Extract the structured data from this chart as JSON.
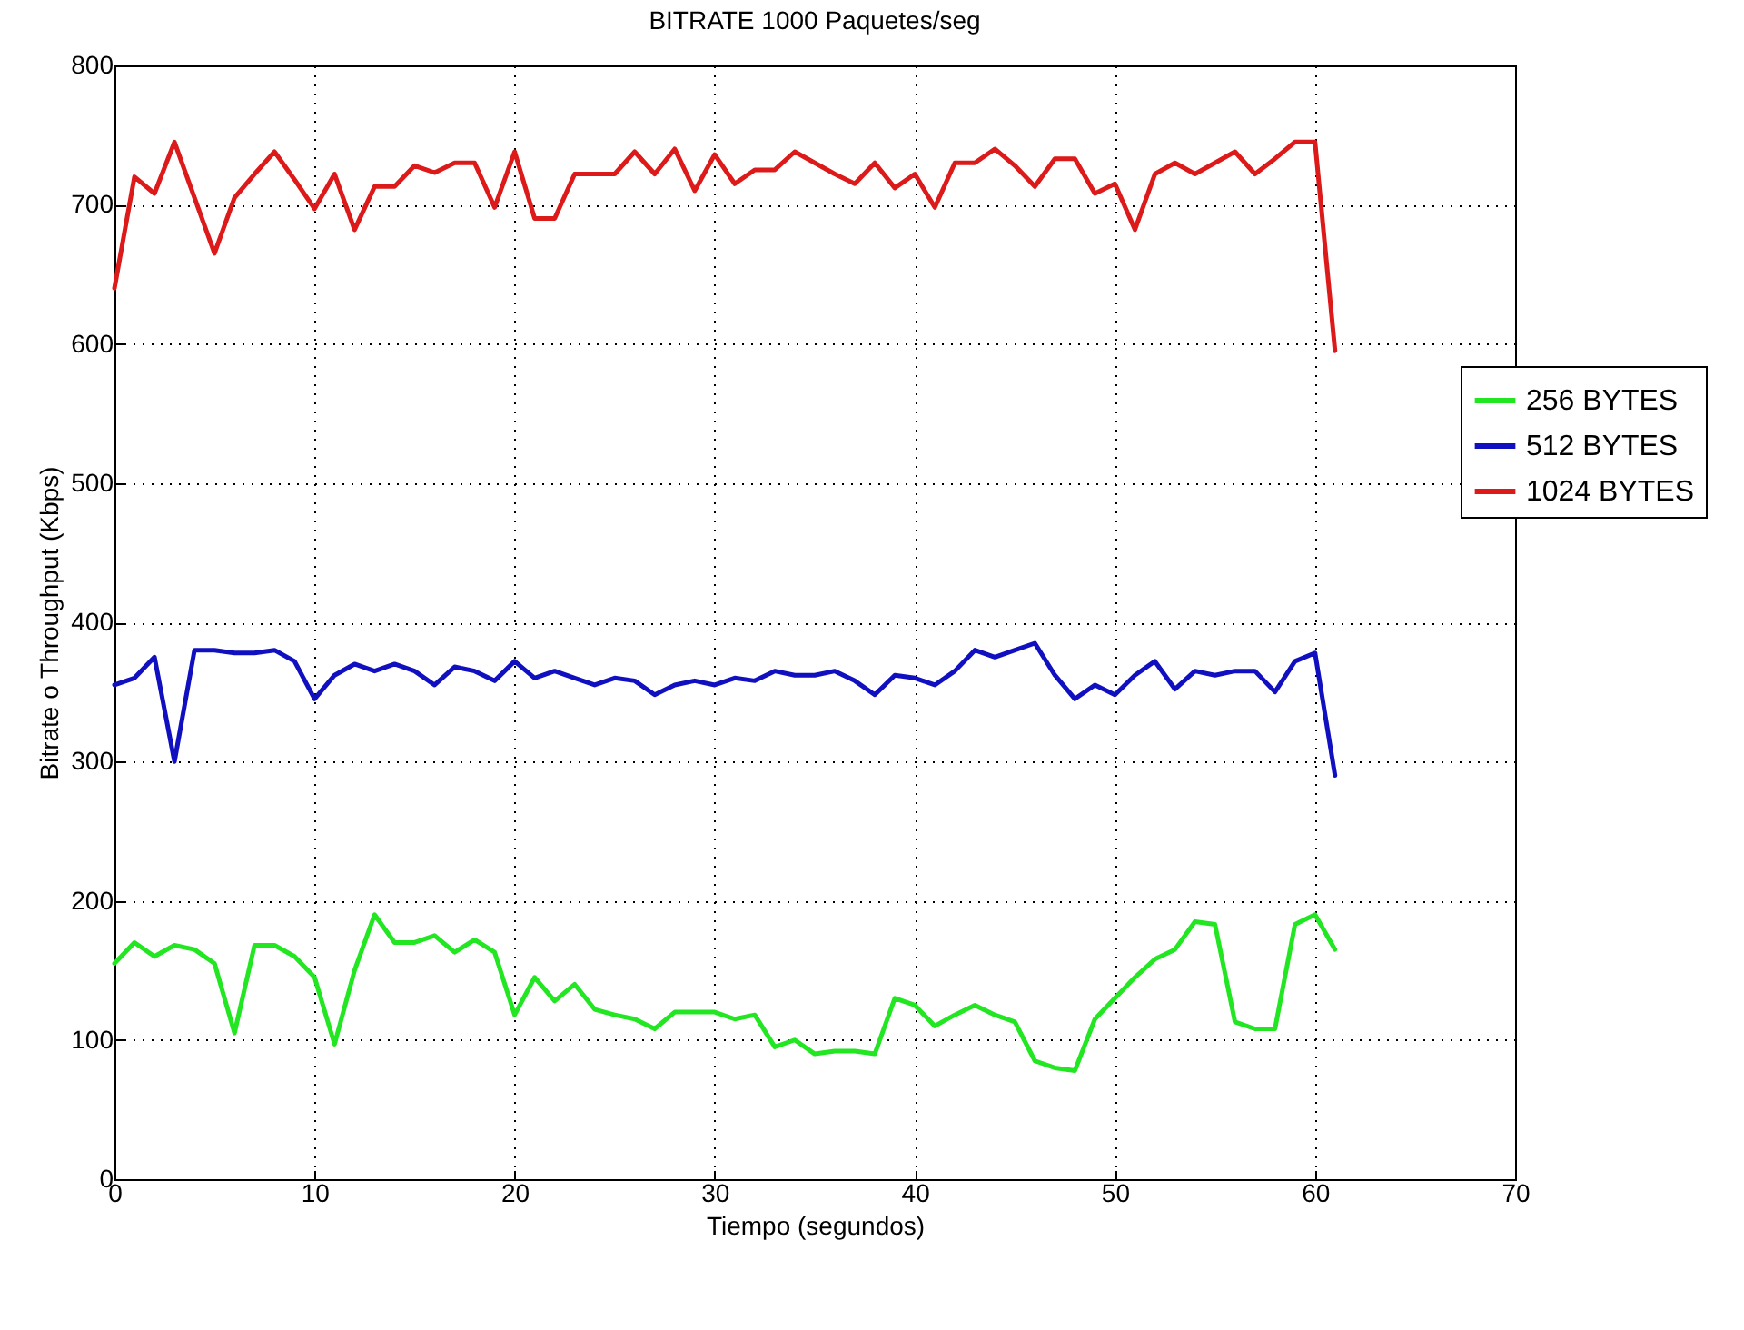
{
  "chart_data": {
    "type": "line",
    "title": "BITRATE   1000 Paquetes/seg",
    "xlabel": "Tiempo (segundos)",
    "ylabel": "Bitrate o Throughput (Kbps)",
    "x": [
      0,
      1,
      2,
      3,
      4,
      5,
      6,
      7,
      8,
      9,
      10,
      11,
      12,
      13,
      14,
      15,
      16,
      17,
      18,
      19,
      20,
      21,
      22,
      23,
      24,
      25,
      26,
      27,
      28,
      29,
      30,
      31,
      32,
      33,
      34,
      35,
      36,
      37,
      38,
      39,
      40,
      41,
      42,
      43,
      44,
      45,
      46,
      47,
      48,
      49,
      50,
      51,
      52,
      53,
      54,
      55,
      56,
      57,
      58,
      59,
      60,
      61
    ],
    "series": [
      {
        "name": "256 BYTES",
        "color": "#22e622",
        "values": [
          155,
          170,
          160,
          168,
          165,
          155,
          105,
          168,
          168,
          160,
          145,
          97,
          150,
          190,
          170,
          170,
          175,
          163,
          172,
          163,
          118,
          145,
          128,
          140,
          122,
          118,
          115,
          108,
          120,
          120,
          120,
          115,
          118,
          95,
          100,
          90,
          92,
          92,
          90,
          130,
          125,
          110,
          118,
          125,
          118,
          113,
          85,
          80,
          78,
          115,
          130,
          145,
          158,
          165,
          185,
          183,
          113,
          108,
          108,
          183,
          190,
          165
        ]
      },
      {
        "name": "512 BYTES",
        "color": "#1010c0",
        "values": [
          355,
          360,
          375,
          300,
          380,
          380,
          378,
          378,
          380,
          372,
          345,
          362,
          370,
          365,
          370,
          365,
          355,
          368,
          365,
          358,
          372,
          360,
          365,
          360,
          355,
          360,
          358,
          348,
          355,
          358,
          355,
          360,
          358,
          365,
          362,
          362,
          365,
          358,
          348,
          362,
          360,
          355,
          365,
          380,
          375,
          380,
          385,
          362,
          345,
          355,
          348,
          362,
          372,
          352,
          365,
          362,
          365,
          365,
          350,
          372,
          378,
          290
        ]
      },
      {
        "name": "1024 BYTES",
        "color": "#dd1a1a",
        "values": [
          640,
          720,
          708,
          745,
          705,
          665,
          705,
          722,
          738,
          718,
          697,
          722,
          682,
          713,
          713,
          728,
          723,
          730,
          730,
          698,
          738,
          690,
          690,
          722,
          722,
          722,
          738,
          722,
          740,
          710,
          736,
          715,
          725,
          725,
          738,
          730,
          722,
          715,
          730,
          712,
          722,
          698,
          730,
          730,
          740,
          728,
          713,
          733,
          733,
          708,
          715,
          682,
          722,
          730,
          722,
          730,
          738,
          722,
          733,
          745,
          745,
          595
        ]
      }
    ],
    "xlim": [
      0,
      70
    ],
    "xticks": [
      0,
      10,
      20,
      30,
      40,
      50,
      60,
      70
    ],
    "ylim": [
      0,
      800
    ],
    "yticks": [
      0,
      100,
      200,
      300,
      400,
      500,
      600,
      700,
      800
    ],
    "grid": true,
    "legend": "right",
    "line_style": "solid"
  }
}
